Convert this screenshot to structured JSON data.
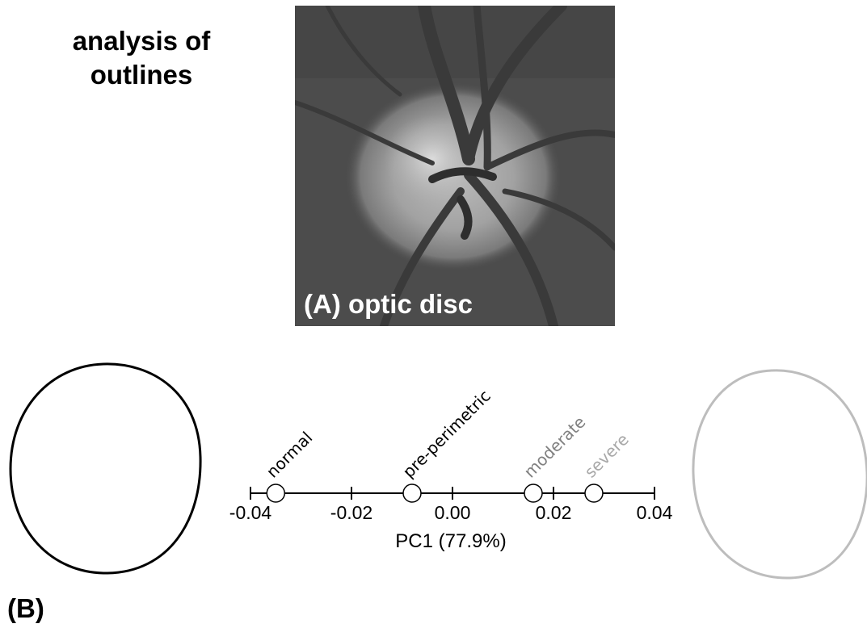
{
  "heading": {
    "line1": "analysis of",
    "line2": "outlines"
  },
  "photo": {
    "caption": "(A) optic disc"
  },
  "panel_b_label": "(B)",
  "colors": {
    "normal": "#000000",
    "pre_perimetric": "#000000",
    "moderate": "#808080",
    "severe": "#a8a8a8",
    "left_outline": "#000000",
    "right_outline": "#bdbdbd"
  },
  "chart_data": {
    "type": "scatter",
    "xlabel": "PC1 (77.9%)",
    "xlim": [
      -0.04,
      0.04
    ],
    "ticks": [
      {
        "value": -0.04,
        "label": "-0.04"
      },
      {
        "value": -0.02,
        "label": "-0.02"
      },
      {
        "value": 0.0,
        "label": "0.00"
      },
      {
        "value": 0.02,
        "label": "0.02"
      },
      {
        "value": 0.04,
        "label": "0.04"
      }
    ],
    "points": [
      {
        "name": "normal",
        "x": -0.035,
        "color": "#000000"
      },
      {
        "name": "pre-perimetric",
        "x": -0.008,
        "color": "#000000"
      },
      {
        "name": "moderate",
        "x": 0.016,
        "color": "#808080"
      },
      {
        "name": "severe",
        "x": 0.028,
        "color": "#a8a8a8"
      }
    ]
  }
}
